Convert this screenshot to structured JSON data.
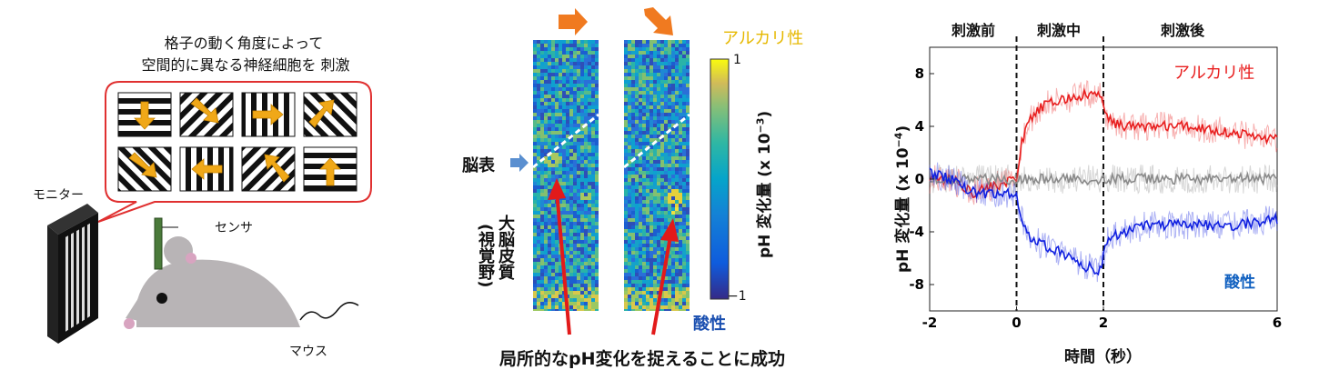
{
  "left_panel": {
    "caption_line1": "格子の動く角度によって",
    "caption_line2": "空間的に異なる神経細胞を 刺激",
    "monitor_label": "モニター",
    "sensor_label": "センサ",
    "mouse_label": "マウス",
    "grating_arrows": [
      "down",
      "down-right",
      "right",
      "up-right",
      "down-right",
      "left",
      "up-left",
      "up"
    ],
    "colors": {
      "bubble_border": "#e03030",
      "arrow": "#f0a818",
      "mouse": "#b8b4b6",
      "sensor": "#4a7a3a"
    }
  },
  "middle_panel": {
    "brain_surface_label": "脳表",
    "cortex_label_line1": "大脳皮質",
    "cortex_label_line2": "(視覚野)",
    "alkaline_label": "アルカリ性",
    "acidic_label": "酸性",
    "colorbar_max": "1",
    "colorbar_min": "−1",
    "colorbar_label": "pH 変化量 (x 10",
    "colorbar_exp": "−3",
    "colorbar_label_end": ")",
    "bottom_caption": "局所的なpH変化を捉えることに成功",
    "stimulus_arrows": [
      "right",
      "down-right"
    ],
    "colors": {
      "arrow": "#f07a20",
      "alkaline": "#e6b800",
      "acidic": "#1a4fb0",
      "red_arrow": "#e21a1a",
      "surface_marker": "#5a8fd0"
    }
  },
  "right_panel": {
    "phase_before": "刺激前",
    "phase_during": "刺激中",
    "phase_after": "刺激後",
    "alkaline_label": "アルカリ性",
    "acidic_label": "酸性",
    "ylabel": "pH 変化量 (x 10",
    "ylabel_exp": "−4",
    "ylabel_end": ")",
    "xlabel": "時間（秒）",
    "colors": {
      "alkaline": "#e81e1e",
      "acidic": "#1020e0",
      "control": "#8a8a8a"
    }
  },
  "chart_data": {
    "type": "line",
    "xlabel": "時間（秒）",
    "ylabel": "pH 変化量 (x 10−4)",
    "xlim": [
      -2,
      6
    ],
    "ylim": [
      -10,
      10
    ],
    "xticks": [
      "-2",
      "0",
      "2",
      "6"
    ],
    "yticks": [
      "8",
      "4",
      "0",
      "-4",
      "-8"
    ],
    "vlines": [
      0,
      2
    ],
    "grid": false,
    "series": [
      {
        "name": "アルカリ性",
        "color": "#e81e1e",
        "x": [
          -2,
          -1.5,
          -1,
          -0.5,
          0,
          0.1,
          0.3,
          0.6,
          1,
          1.5,
          1.9,
          2,
          2.1,
          2.5,
          3,
          4,
          5,
          6
        ],
        "y": [
          0,
          0,
          -1,
          -0.5,
          0,
          2.5,
          4.5,
          5.5,
          6,
          6.3,
          6.5,
          5.5,
          4.5,
          4,
          4,
          4,
          3.5,
          3
        ]
      },
      {
        "name": "",
        "color": "#8a8a8a",
        "x": [
          -2,
          -1,
          0,
          1,
          2,
          3,
          4,
          5,
          6
        ],
        "y": [
          0,
          0,
          0,
          0,
          0,
          0,
          0,
          0,
          0
        ]
      },
      {
        "name": "酸性",
        "color": "#1020e0",
        "x": [
          -2,
          -1.5,
          -1,
          -0.5,
          0,
          0.1,
          0.3,
          0.6,
          1,
          1.5,
          1.9,
          2,
          2.1,
          2.5,
          3,
          4,
          5,
          6
        ],
        "y": [
          0.5,
          0,
          -1,
          -1.2,
          -1,
          -3,
          -4.5,
          -5,
          -5.5,
          -6.5,
          -7,
          -6,
          -4.5,
          -4,
          -3.5,
          -3.5,
          -3.5,
          -3
        ]
      }
    ]
  }
}
